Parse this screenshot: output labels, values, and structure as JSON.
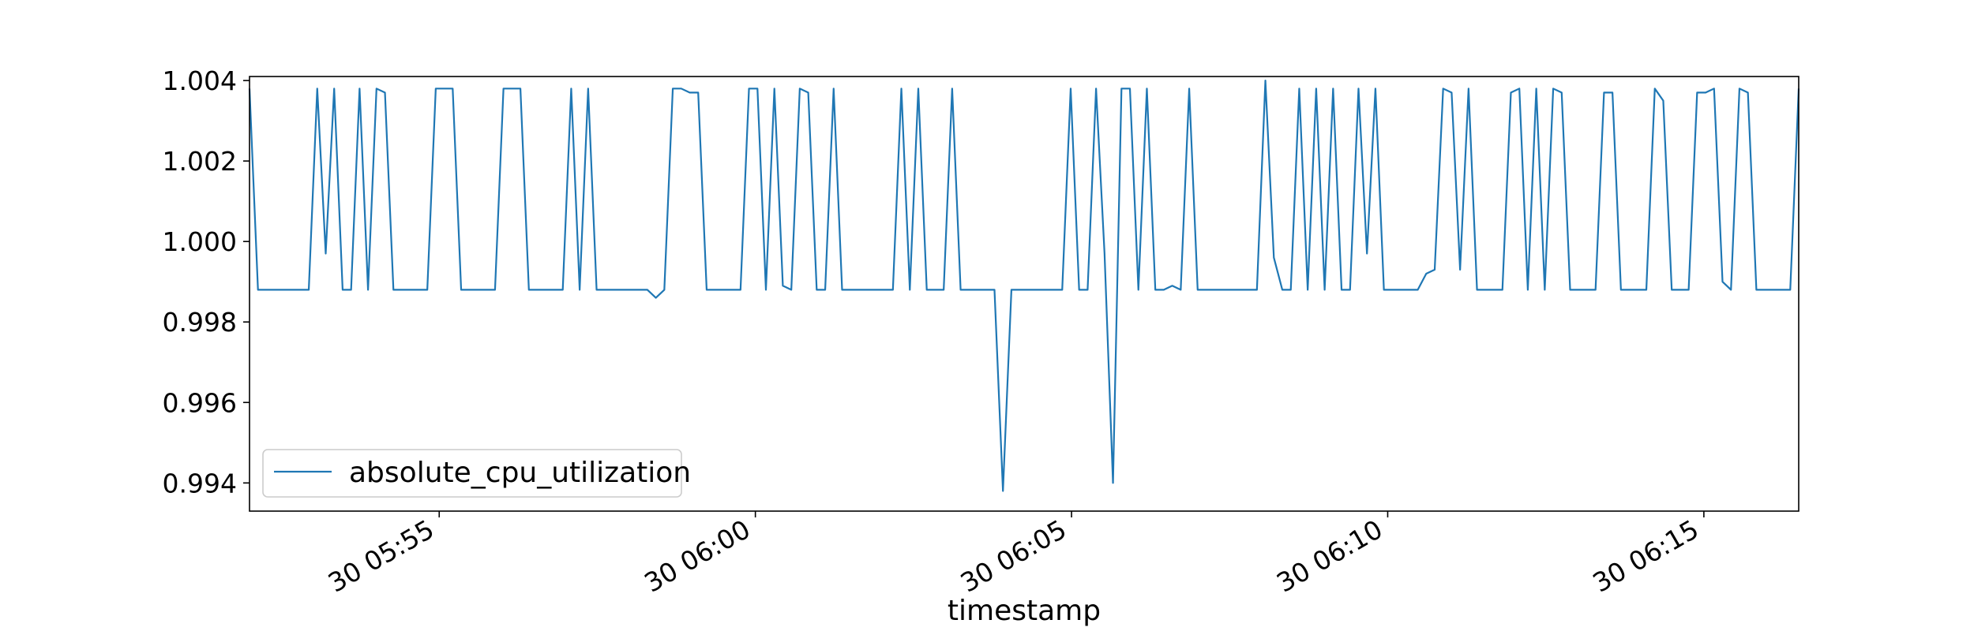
{
  "chart_data": {
    "type": "line",
    "title": "",
    "xlabel": "timestamp",
    "ylabel": "",
    "x_start": "05:52:00",
    "x_end": "06:16:30",
    "xlim": [
      "05:52:00",
      "06:16:30"
    ],
    "ylim": [
      0.9933,
      1.0041
    ],
    "x_ticks": [
      {
        "time": "05:55:00",
        "label": "30 05:55"
      },
      {
        "time": "06:00:00",
        "label": "30 06:00"
      },
      {
        "time": "06:05:00",
        "label": "30 06:05"
      },
      {
        "time": "06:10:00",
        "label": "30 06:10"
      },
      {
        "time": "06:15:00",
        "label": "30 06:15"
      }
    ],
    "y_ticks": [
      {
        "value": 0.994,
        "label": "0.994"
      },
      {
        "value": 0.996,
        "label": "0.996"
      },
      {
        "value": 0.998,
        "label": "0.998"
      },
      {
        "value": 1.0,
        "label": "1.000"
      },
      {
        "value": 1.002,
        "label": "1.002"
      },
      {
        "value": 1.004,
        "label": "1.004"
      }
    ],
    "grid": false,
    "legend": {
      "placement": "lower-left"
    },
    "series": [
      {
        "name": "absolute_cpu_utilization",
        "color": "#1f77b4",
        "values": [
          1.0038,
          0.9988,
          0.9988,
          0.9988,
          0.9988,
          0.9988,
          0.9988,
          0.9988,
          1.0038,
          0.9997,
          1.0038,
          0.9988,
          0.9988,
          1.0038,
          0.9988,
          1.0038,
          1.0037,
          0.9988,
          0.9988,
          0.9988,
          0.9988,
          0.9988,
          1.0038,
          1.0038,
          1.0038,
          0.9988,
          0.9988,
          0.9988,
          0.9988,
          0.9988,
          1.0038,
          1.0038,
          1.0038,
          0.9988,
          0.9988,
          0.9988,
          0.9988,
          0.9988,
          1.0038,
          0.9988,
          1.0038,
          0.9988,
          0.9988,
          0.9988,
          0.9988,
          0.9988,
          0.9988,
          0.9988,
          0.9986,
          0.9988,
          1.0038,
          1.0038,
          1.0037,
          1.0037,
          0.9988,
          0.9988,
          0.9988,
          0.9988,
          0.9988,
          1.0038,
          1.0038,
          0.9988,
          1.0038,
          0.9989,
          0.9988,
          1.0038,
          1.0037,
          0.9988,
          0.9988,
          1.0038,
          0.9988,
          0.9988,
          0.9988,
          0.9988,
          0.9988,
          0.9988,
          0.9988,
          1.0038,
          0.9988,
          1.0038,
          0.9988,
          0.9988,
          0.9988,
          1.0038,
          0.9988,
          0.9988,
          0.9988,
          0.9988,
          0.9988,
          0.9938,
          0.9988,
          0.9988,
          0.9988,
          0.9988,
          0.9988,
          0.9988,
          0.9988,
          1.0038,
          0.9988,
          0.9988,
          1.0038,
          0.9997,
          0.994,
          1.0038,
          1.0038,
          0.9988,
          1.0038,
          0.9988,
          0.9988,
          0.9989,
          0.9988,
          1.0038,
          0.9988,
          0.9988,
          0.9988,
          0.9988,
          0.9988,
          0.9988,
          0.9988,
          0.9988,
          1.004,
          0.9996,
          0.9988,
          0.9988,
          1.0038,
          0.9988,
          1.0038,
          0.9988,
          1.0038,
          0.9988,
          0.9988,
          1.0038,
          0.9997,
          1.0038,
          0.9988,
          0.9988,
          0.9988,
          0.9988,
          0.9988,
          0.9992,
          0.9993,
          1.0038,
          1.0037,
          0.9993,
          1.0038,
          0.9988,
          0.9988,
          0.9988,
          0.9988,
          1.0037,
          1.0038,
          0.9988,
          1.0038,
          0.9988,
          1.0038,
          1.0037,
          0.9988,
          0.9988,
          0.9988,
          0.9988,
          1.0037,
          1.0037,
          0.9988,
          0.9988,
          0.9988,
          0.9988,
          1.0038,
          1.0035,
          0.9988,
          0.9988,
          0.9988,
          1.0037,
          1.0037,
          1.0038,
          0.999,
          0.9988,
          1.0038,
          1.0037,
          0.9988,
          0.9988,
          0.9988,
          0.9988,
          0.9988,
          1.0038
        ]
      }
    ]
  }
}
